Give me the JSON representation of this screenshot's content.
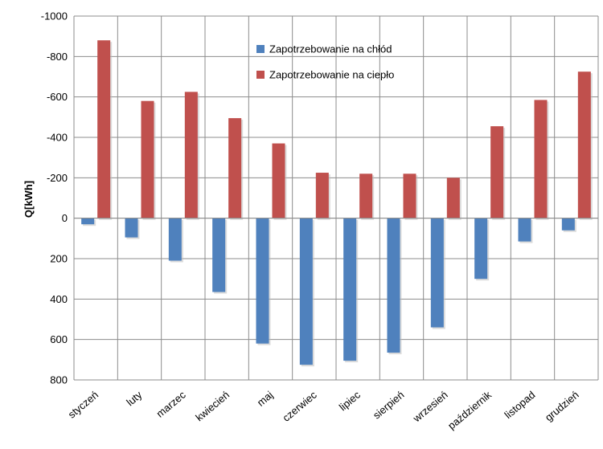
{
  "chart_data": {
    "type": "bar",
    "ylabel": "Q[kWh]",
    "ylim": [
      800,
      -1000
    ],
    "y_ticks": [
      "-1000",
      "-800",
      "-600",
      "-400",
      "-200",
      "0",
      "200",
      "400",
      "600",
      "800"
    ],
    "y_tick_values": [
      -1000,
      -800,
      -600,
      -400,
      -200,
      0,
      200,
      400,
      600,
      800
    ],
    "y_axis_inverted": true,
    "grid": true,
    "legend_position": "top-center",
    "categories": [
      "styczeń",
      "luty",
      "marzec",
      "kwiecień",
      "maj",
      "czerwiec",
      "lipiec",
      "sierpień",
      "wrzesień",
      "październik",
      "listopad",
      "grudzień"
    ],
    "series": [
      {
        "name": "Zapotrzebowanie na chłód",
        "color": "#4f81bd",
        "values": [
          30,
          95,
          210,
          365,
          620,
          725,
          705,
          665,
          540,
          300,
          115,
          60
        ]
      },
      {
        "name": "Zapotrzebowanie na ciepło",
        "color": "#c0504d",
        "values": [
          -880,
          -580,
          -625,
          -495,
          -370,
          -225,
          -220,
          -220,
          -200,
          -455,
          -585,
          -725
        ]
      }
    ]
  }
}
